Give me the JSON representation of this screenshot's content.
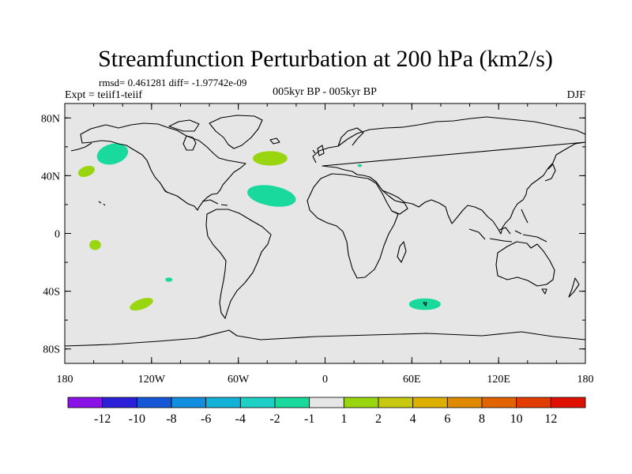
{
  "title": "Streamfunction Perturbation at 200 hPa (km2/s)",
  "stats": "rmsd= 0.461281 diff= -1.97742e-09",
  "experiment": "Expt = teiif1-teiif",
  "period": "005kyr BP - 005kyr BP",
  "season": "DJF",
  "map": {
    "lon_range": [
      -180,
      180
    ],
    "lat_range": [
      -90,
      90
    ],
    "lon_tick_values": [
      -180,
      -120,
      -60,
      0,
      60,
      120,
      180
    ],
    "lat_tick_values": [
      80,
      40,
      0,
      -40,
      -80
    ],
    "lon_ticks": [
      "180",
      "120W",
      "60W",
      "0",
      "60E",
      "120E",
      "180"
    ],
    "lat_ticks": [
      "80N",
      "40N",
      "0",
      "40S",
      "80S"
    ],
    "ocean_color": "#e6e6e6",
    "coastline_color": "#000000"
  },
  "colorbar": {
    "labels": [
      "-12",
      "-10",
      "-8",
      "-6",
      "-4",
      "-2",
      "-1",
      "1",
      "2",
      "4",
      "6",
      "8",
      "10",
      "12"
    ],
    "colors": [
      "#8a12e6",
      "#2c20d8",
      "#1557d6",
      "#128ee0",
      "#12b2d8",
      "#1ecfc6",
      "#19d99d",
      "#e6e6e6",
      "#9ad60f",
      "#c8c810",
      "#ddb000",
      "#df8a00",
      "#e26400",
      "#e23c00",
      "#e01000"
    ]
  },
  "anomalies": [
    {
      "lon": -147,
      "lat": 55,
      "rlon": 11,
      "rlat": 7,
      "rot": 15,
      "class": "-2 to -1"
    },
    {
      "lon": -165,
      "lat": 43,
      "rlon": 6,
      "rlat": 3.5,
      "rot": 20,
      "class": "1 to 2"
    },
    {
      "lon": -38,
      "lat": 52,
      "rlon": 12,
      "rlat": 5,
      "rot": 0,
      "class": "1 to 2"
    },
    {
      "lon": -37,
      "lat": 26,
      "rlon": 17,
      "rlat": 7,
      "rot": -10,
      "class": "-2 to -1"
    },
    {
      "lon": 24,
      "lat": 47,
      "rlon": 1.5,
      "rlat": 1,
      "rot": 0,
      "class": "-2 to -1"
    },
    {
      "lon": -159,
      "lat": -8,
      "rlon": 4,
      "rlat": 3.5,
      "rot": 0,
      "class": "1 to 2"
    },
    {
      "lon": -108,
      "lat": -32,
      "rlon": 2.5,
      "rlat": 1.5,
      "rot": 0,
      "class": "-2 to -1"
    },
    {
      "lon": -127,
      "lat": -49,
      "rlon": 8.5,
      "rlat": 3.5,
      "rot": 20,
      "class": "1 to 2"
    },
    {
      "lon": 69,
      "lat": -49,
      "rlon": 11,
      "rlat": 4,
      "rot": 0,
      "class": "-2 to -1"
    }
  ]
}
